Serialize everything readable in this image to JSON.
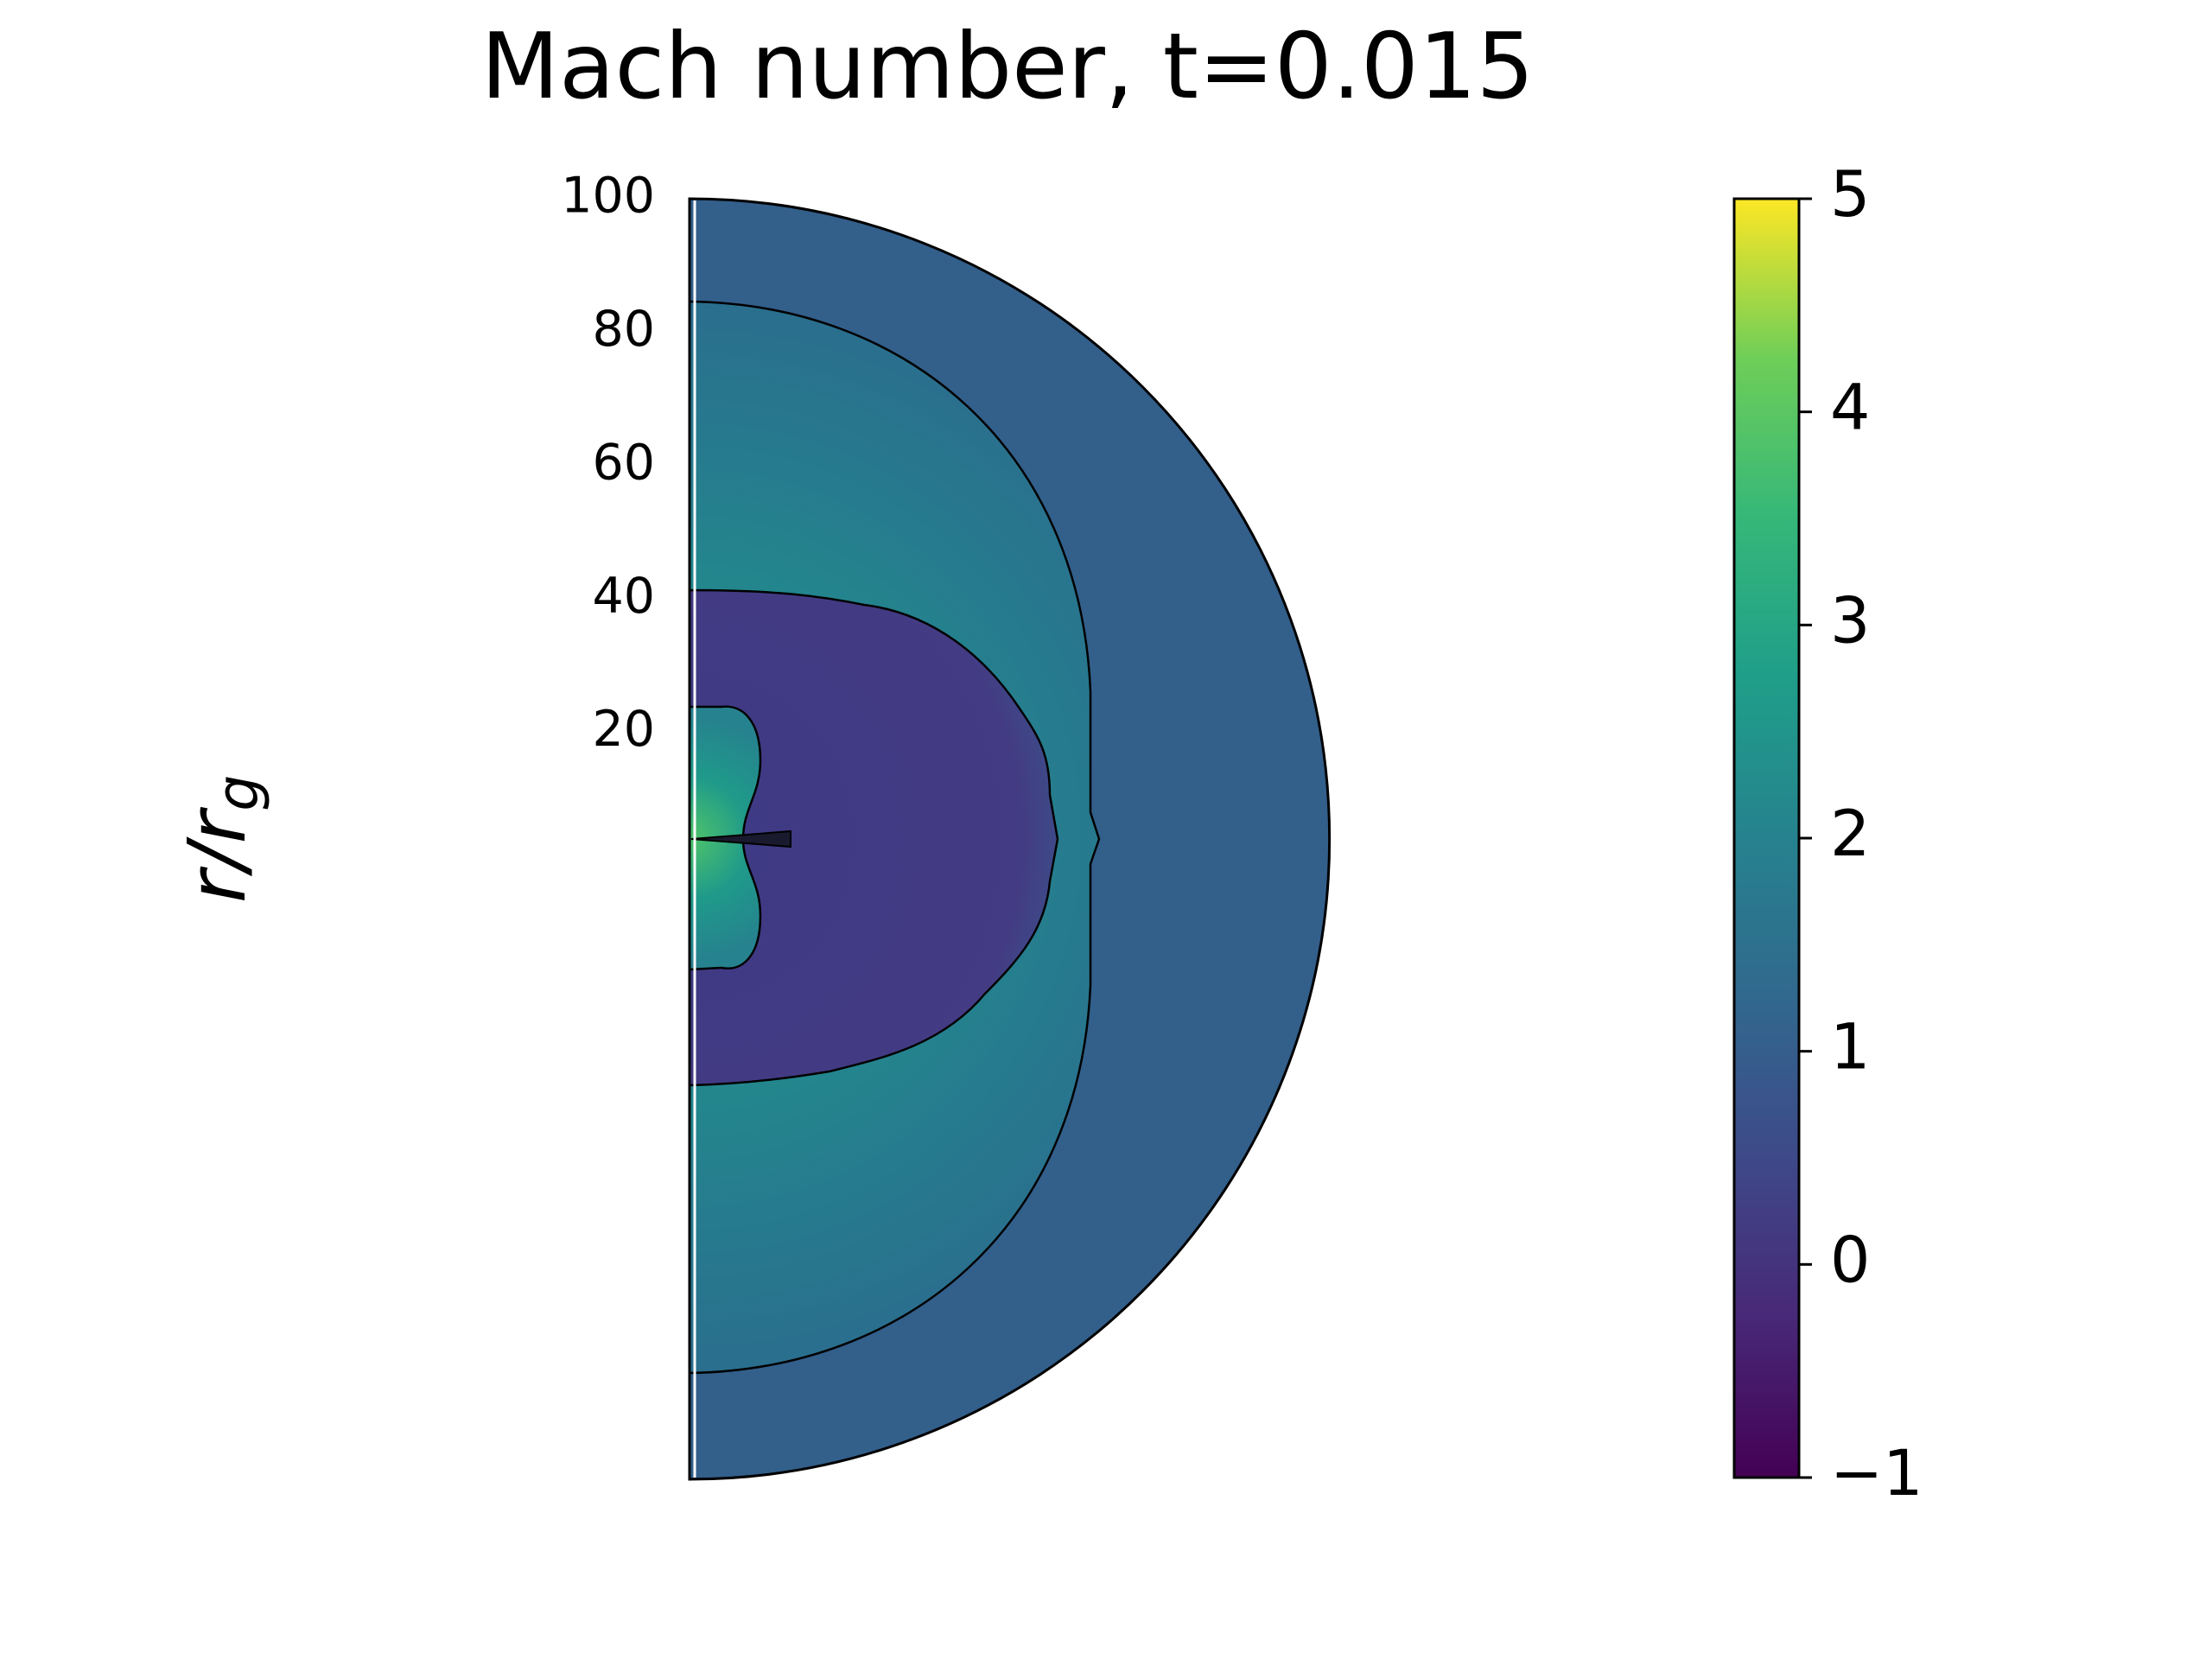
{
  "chart_data": {
    "type": "polar_field",
    "title": "Mach number, t=0.015",
    "ylabel": "r/r",
    "ylabel_subscript": "g",
    "ylim": [
      4,
      100
    ],
    "yticks": [
      20,
      40,
      60,
      80,
      100
    ],
    "colorbar": {
      "cmap": "viridis",
      "lim": [
        -1,
        5
      ],
      "ticks": [
        {
          "value": -1,
          "label": "−1"
        },
        0,
        1,
        2,
        3,
        4,
        5
      ]
    }
  }
}
